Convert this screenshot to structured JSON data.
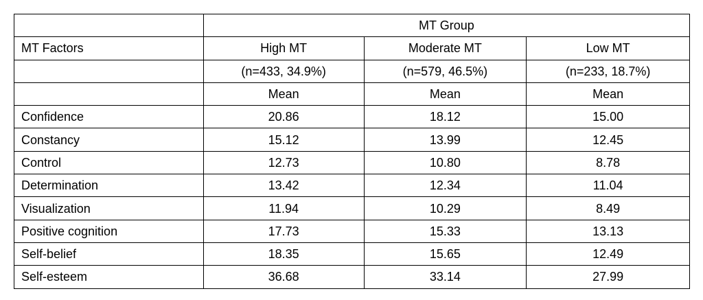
{
  "table": {
    "group_header": "MT Group",
    "header": [
      "MT Factors",
      "High MT",
      "Moderate MT",
      "Low MT"
    ],
    "sizes": [
      "(n=433, 34.9%)",
      "(n=579, 46.5%)",
      "(n=233, 18.7%)"
    ],
    "stat": [
      "Mean",
      "Mean",
      "Mean"
    ],
    "rows": [
      [
        "Confidence",
        "20.86",
        "18.12",
        "15.00"
      ],
      [
        "Constancy",
        "15.12",
        "13.99",
        "12.45"
      ],
      [
        "Control",
        "12.73",
        "10.80",
        "8.78"
      ],
      [
        "Determination",
        "13.42",
        "12.34",
        "11.04"
      ],
      [
        "Visualization",
        "11.94",
        "10.29",
        "8.49"
      ],
      [
        "Positive cognition",
        "17.73",
        "15.33",
        "13.13"
      ],
      [
        "Self-belief",
        "18.35",
        "15.65",
        "12.49"
      ],
      [
        "Self-esteem",
        "36.68",
        "33.14",
        "27.99"
      ]
    ]
  }
}
